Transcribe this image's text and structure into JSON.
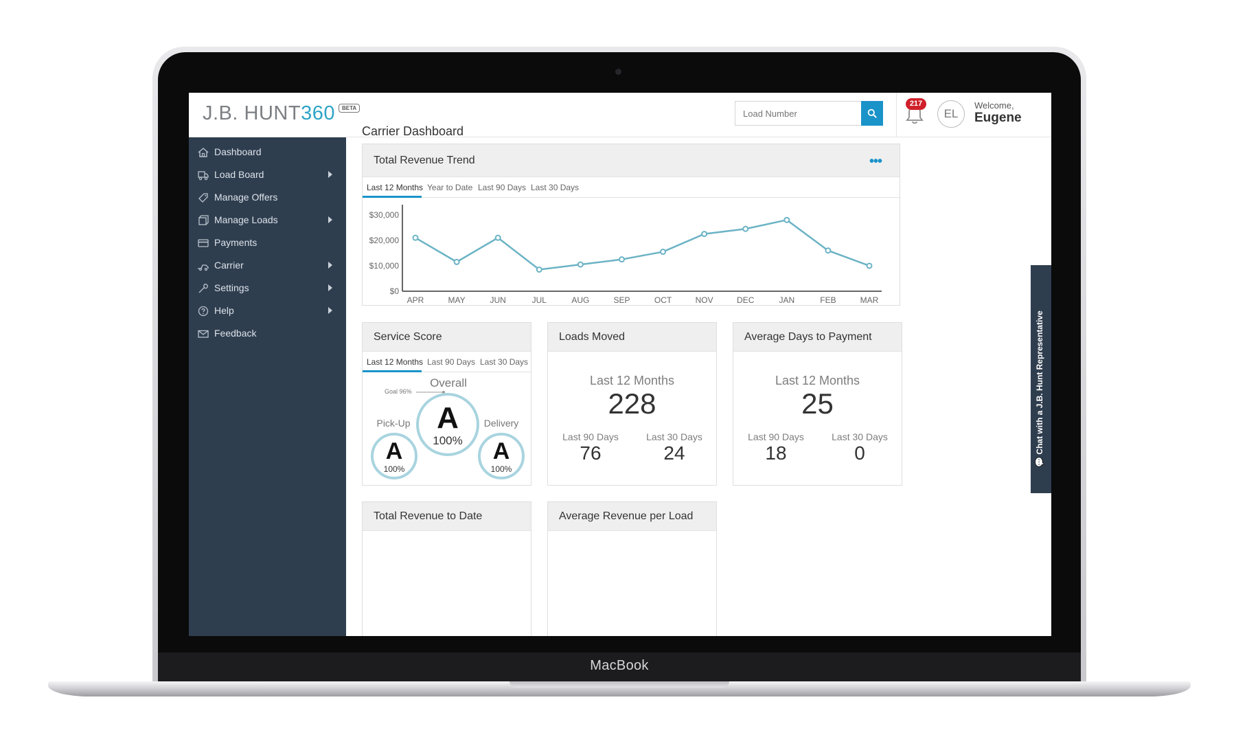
{
  "device": {
    "brand_label": "MacBook"
  },
  "header": {
    "logo_text": "J.B. HUNT",
    "logo_number": "360",
    "beta_badge": "BETA",
    "search_placeholder": "Load Number",
    "notification_count": "217",
    "avatar_initials": "EL",
    "welcome_text": "Welcome,",
    "user_name": "Eugene"
  },
  "sidebar": {
    "items": [
      {
        "label": "Dashboard",
        "icon": "home-icon",
        "has_submenu": false
      },
      {
        "label": "Load Board",
        "icon": "truck-icon",
        "has_submenu": true
      },
      {
        "label": "Manage Offers",
        "icon": "tag-icon",
        "has_submenu": false
      },
      {
        "label": "Manage Loads",
        "icon": "box-icon",
        "has_submenu": true
      },
      {
        "label": "Payments",
        "icon": "credit-card-icon",
        "has_submenu": false
      },
      {
        "label": "Carrier",
        "icon": "carrier-icon",
        "has_submenu": true
      },
      {
        "label": "Settings",
        "icon": "wrench-icon",
        "has_submenu": true
      },
      {
        "label": "Help",
        "icon": "question-icon",
        "has_submenu": true
      },
      {
        "label": "Feedback",
        "icon": "envelope-icon",
        "has_submenu": false
      }
    ]
  },
  "main": {
    "page_title": "Carrier Dashboard",
    "revenue_trend": {
      "title": "Total Revenue Trend",
      "menu_icon": "more-dots-icon",
      "tabs": [
        "Last 12 Months",
        "Year to Date",
        "Last 90 Days",
        "Last 30 Days"
      ],
      "active_tab": 0
    },
    "service_score": {
      "title": "Service Score",
      "tabs": [
        "Last 12 Months",
        "Last 90 Days",
        "Last 30 Days"
      ],
      "active_tab": 0,
      "overall_label": "Overall",
      "goal_label": "Goal 96%",
      "overall_grade": "A",
      "overall_pct": "100%",
      "pickup_label": "Pick-Up",
      "pickup_grade": "A",
      "pickup_pct": "100%",
      "delivery_label": "Delivery",
      "delivery_grade": "A",
      "delivery_pct": "100%"
    },
    "loads_moved": {
      "title": "Loads Moved",
      "period_label": "Last 12 Months",
      "period_value": "228",
      "col1_label": "Last 90 Days",
      "col1_value": "76",
      "col2_label": "Last 30 Days",
      "col2_value": "24"
    },
    "avg_days_payment": {
      "title": "Average Days to Payment",
      "period_label": "Last 12 Months",
      "period_value": "25",
      "col1_label": "Last 90 Days",
      "col1_value": "18",
      "col2_label": "Last 30 Days",
      "col2_value": "0"
    },
    "total_revenue_to_date": {
      "title": "Total Revenue to Date"
    },
    "avg_revenue_per_load": {
      "title": "Average Revenue per Load"
    },
    "chat": {
      "label": "Chat with a J.B. Hunt Representative"
    }
  },
  "chart_data": {
    "type": "line",
    "categories": [
      "APR",
      "MAY",
      "JUN",
      "JUL",
      "AUG",
      "SEP",
      "OCT",
      "NOV",
      "DEC",
      "JAN",
      "FEB",
      "MAR"
    ],
    "values": [
      21000,
      11500,
      21000,
      8500,
      10500,
      12500,
      15500,
      22500,
      24500,
      28000,
      16000,
      10000
    ],
    "y_tick_labels": [
      "$0",
      "$10,000",
      "$20,000",
      "$30,000"
    ],
    "y_ticks": [
      0,
      10000,
      20000,
      30000
    ],
    "ylim": [
      0,
      34000
    ],
    "grid": false,
    "line_color": "#6bb3c5"
  }
}
